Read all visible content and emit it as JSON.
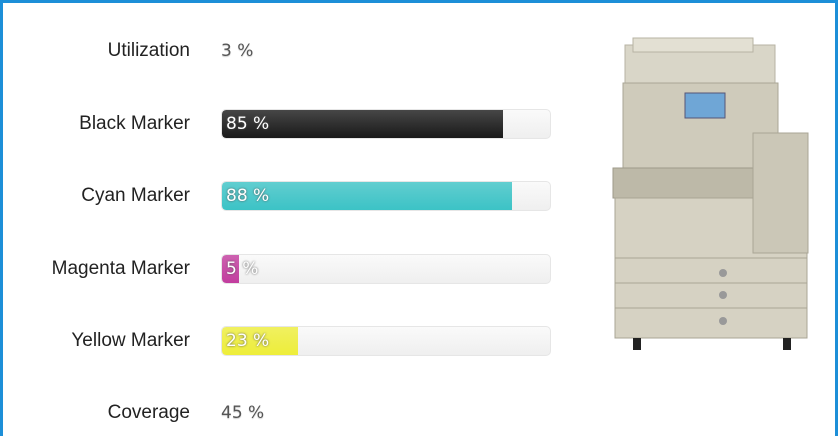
{
  "utilization": {
    "label": "Utilization",
    "value_label": "3 %"
  },
  "markers": [
    {
      "name": "Black Marker",
      "value": 85,
      "value_label": "85 %",
      "color": "#1a1a1a"
    },
    {
      "name": "Cyan Marker",
      "value": 88,
      "value_label": "88 %",
      "color": "#3cc3c6"
    },
    {
      "name": "Magenta Marker",
      "value": 5,
      "value_label": "5 %",
      "color": "#c23c9e"
    },
    {
      "name": "Yellow Marker",
      "value": 23,
      "value_label": "23 %",
      "color": "#eeee3a"
    }
  ],
  "coverage": {
    "label": "Coverage",
    "value_label": "45 %"
  }
}
